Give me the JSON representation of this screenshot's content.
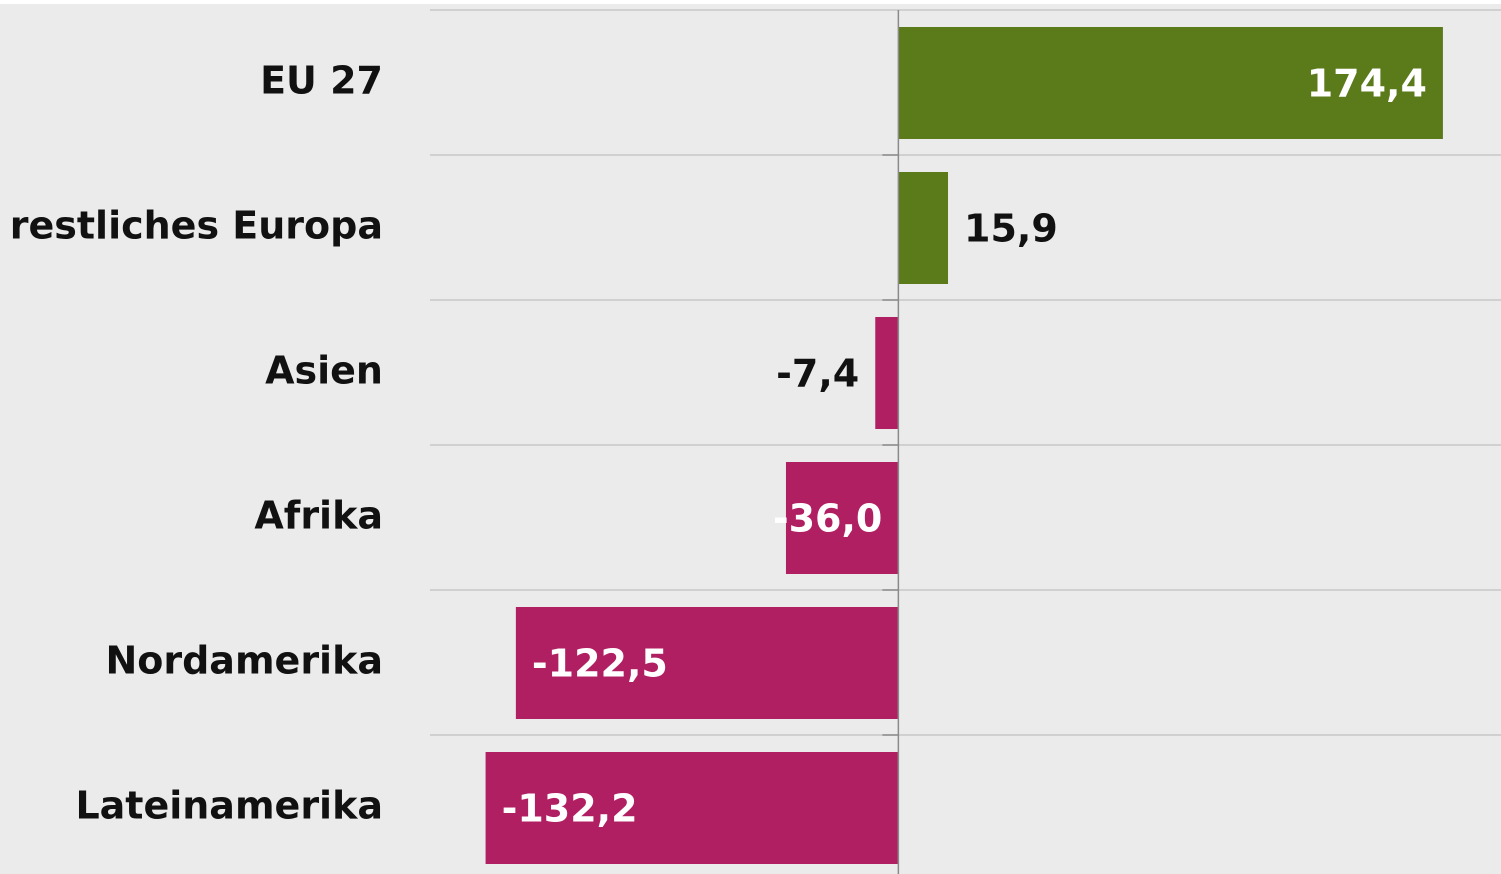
{
  "chart_data": {
    "type": "hbar",
    "categories": [
      "EU 27",
      "restliches Europa",
      "Asien",
      "Afrika",
      "Nordamerika",
      "Lateinamerika"
    ],
    "values": [
      174.4,
      15.9,
      -7.4,
      -36.0,
      -122.5,
      -132.2
    ],
    "value_labels": [
      "174,4",
      "15,9",
      "-7,4",
      "-36,0",
      "-122,5",
      "-132,2"
    ],
    "colors": [
      "#5b7a1a",
      "#5b7a1a",
      "#b11f63",
      "#b11f63",
      "#b11f63",
      "#b11f63"
    ],
    "xlim": [
      -150,
      193
    ]
  }
}
